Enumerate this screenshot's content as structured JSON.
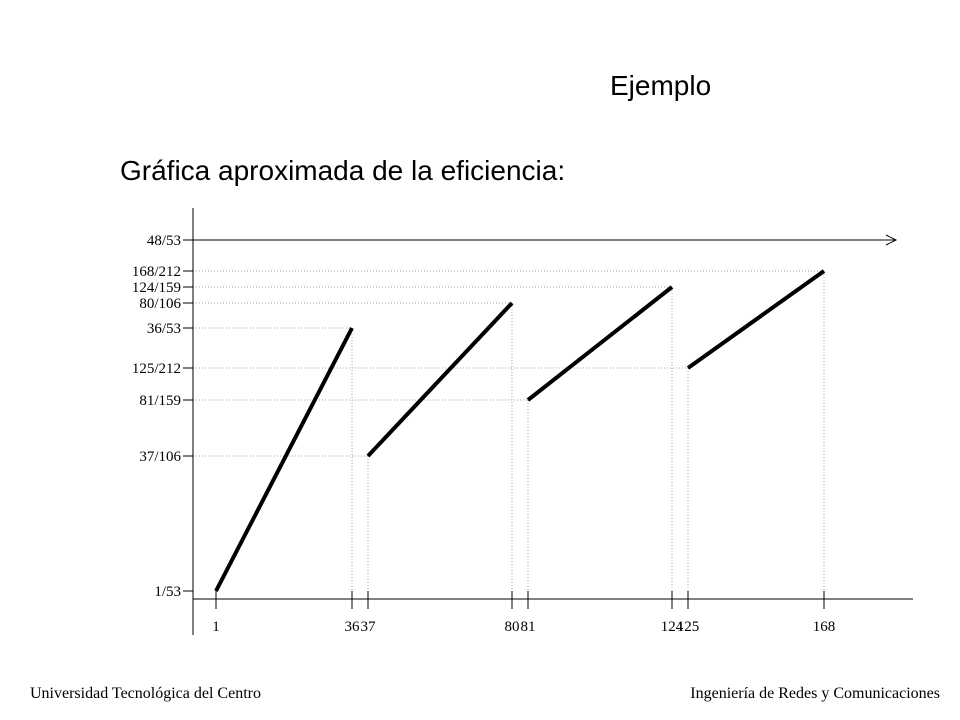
{
  "slide": {
    "title": "Ejemplo",
    "subtitle": "Gráfica aproximada de la eficiencia:"
  },
  "footer": {
    "left": "Universidad Tecnológica del Centro",
    "right": "Ingeniería de Redes y Comunicaciones"
  },
  "chart_data": {
    "type": "line",
    "title": "",
    "xlabel": "",
    "ylabel": "",
    "grid": false,
    "x_ticks": [
      {
        "value": 1,
        "label": "1"
      },
      {
        "value": 36,
        "label": "36"
      },
      {
        "value": 37,
        "label": "37"
      },
      {
        "value": 80,
        "label": "80"
      },
      {
        "value": 81,
        "label": "81"
      },
      {
        "value": 124,
        "label": "124"
      },
      {
        "value": 125,
        "label": "125"
      },
      {
        "value": 168,
        "label": "168"
      }
    ],
    "y_ticks": [
      {
        "value": 0.018868,
        "label": "1/53"
      },
      {
        "value": 0.349057,
        "label": "37/106"
      },
      {
        "value": 0.509434,
        "label": "81/159"
      },
      {
        "value": 0.589623,
        "label": "125/212"
      },
      {
        "value": 0.679245,
        "label": "36/53"
      },
      {
        "value": 0.754717,
        "label": "80/106"
      },
      {
        "value": 0.779874,
        "label": "124/159"
      },
      {
        "value": 0.792453,
        "label": "168/212"
      },
      {
        "value": 0.90566,
        "label": "48/53"
      }
    ],
    "asymptote": {
      "value": 0.90566,
      "label": "48/53"
    },
    "segments": [
      {
        "x": [
          1,
          36
        ],
        "y": [
          0.018868,
          0.679245
        ]
      },
      {
        "x": [
          37,
          80
        ],
        "y": [
          0.349057,
          0.754717
        ]
      },
      {
        "x": [
          81,
          124
        ],
        "y": [
          0.509434,
          0.779874
        ]
      },
      {
        "x": [
          125,
          168
        ],
        "y": [
          0.589623,
          0.792453
        ]
      }
    ],
    "guide_lines": [
      {
        "x": 36,
        "y": 0.679245
      },
      {
        "x": 37,
        "y": 0.349057
      },
      {
        "x": 80,
        "y": 0.754717
      },
      {
        "x": 81,
        "y": 0.509434
      },
      {
        "x": 124,
        "y": 0.779874
      },
      {
        "x": 125,
        "y": 0.589623
      },
      {
        "x": 168,
        "y": 0.792453
      }
    ]
  }
}
